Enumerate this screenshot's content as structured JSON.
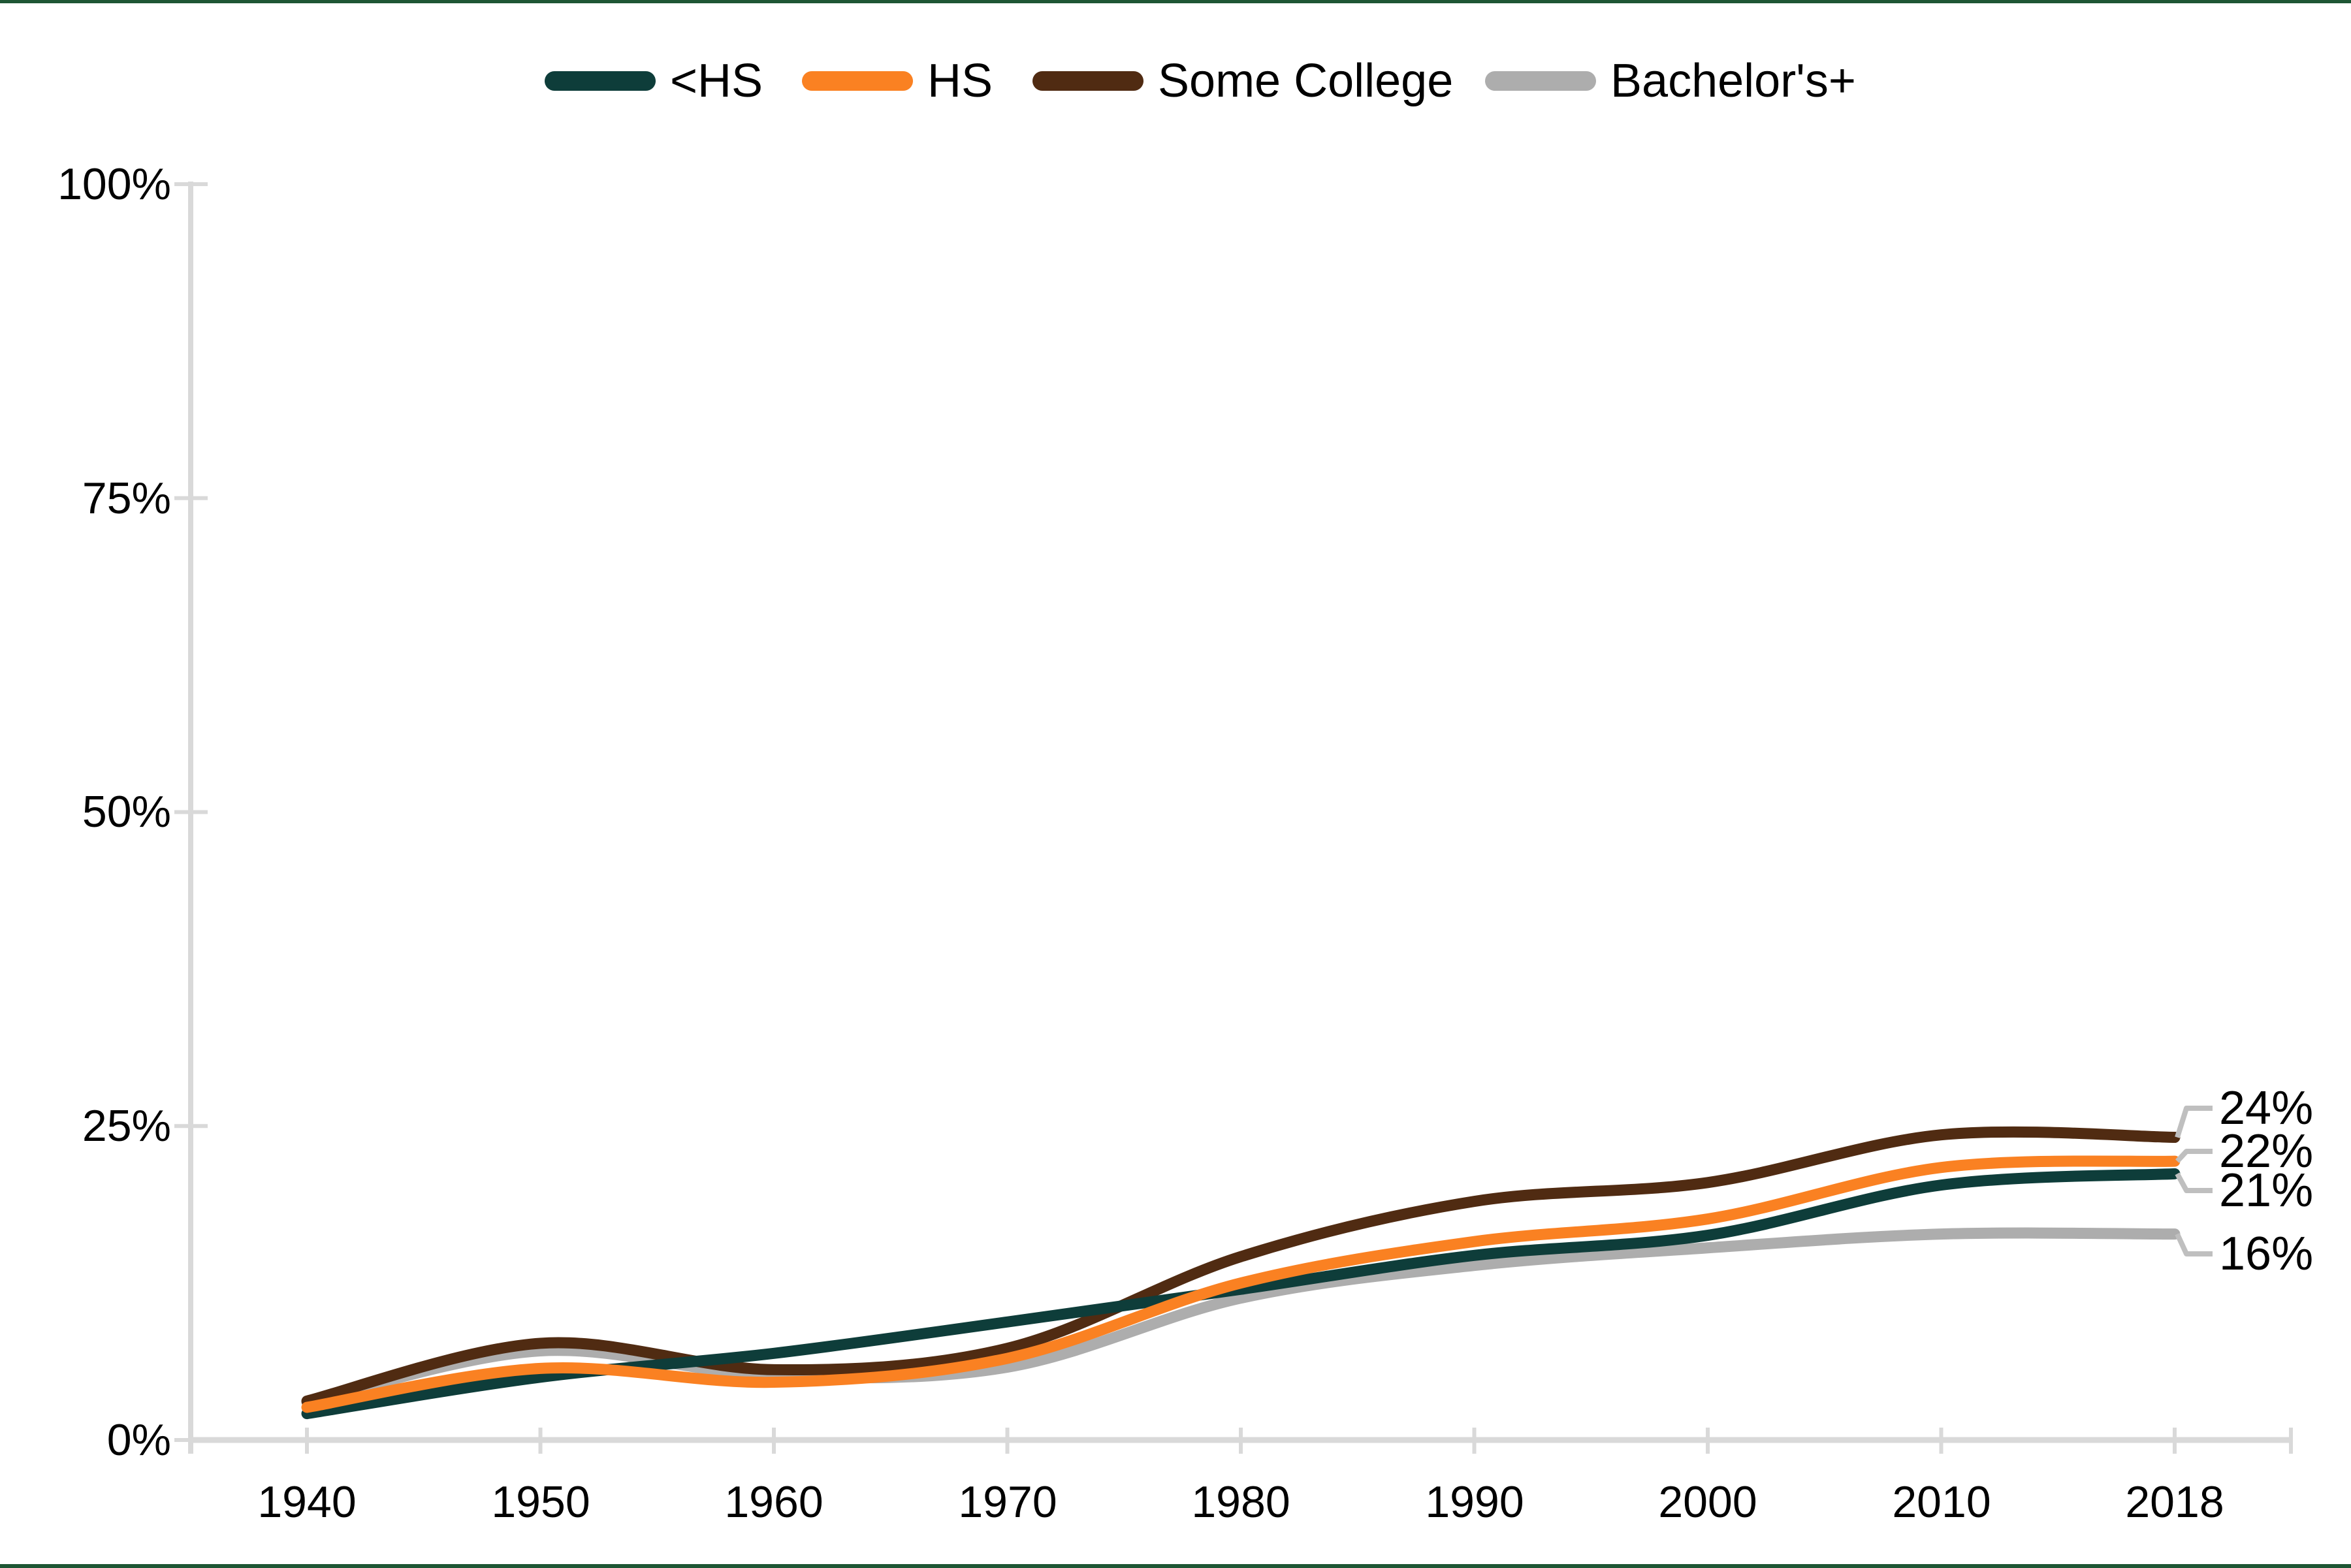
{
  "page": {
    "background": "#FFFFFF",
    "top_bottom_border_color": "#1E5634"
  },
  "chart_data": {
    "type": "line",
    "title": "",
    "xlabel": "",
    "ylabel": "",
    "x_categories": [
      "1940",
      "1950",
      "1960",
      "1970",
      "1980",
      "1990",
      "2000",
      "2010",
      "2018"
    ],
    "y_tick_labels": [
      "100%",
      "75%",
      "50%",
      "25%",
      "0%"
    ],
    "y_tick_values": [
      100,
      75,
      50,
      25,
      0
    ],
    "ylim": [
      0,
      100
    ],
    "grid": false,
    "smoothed_lines": true,
    "legend_position": "top",
    "axis_color": "#D9D9D9",
    "leader_line_color": "#BFBFBF",
    "series": [
      {
        "name": "<HS",
        "color": "#0E3D3A",
        "values": [
          2.1,
          5.0,
          6.9,
          9.4,
          12.0,
          14.7,
          16.3,
          20.3,
          21.2
        ],
        "end_label": "21%"
      },
      {
        "name": "HS",
        "color": "#FA8122",
        "values": [
          2.6,
          5.7,
          4.6,
          6.5,
          12.5,
          15.8,
          17.6,
          21.7,
          22.2
        ],
        "end_label": "22%"
      },
      {
        "name": "Some College",
        "color": "#502B12",
        "values": [
          3.1,
          7.7,
          5.6,
          7.3,
          14.6,
          19.0,
          20.5,
          24.3,
          24.1
        ],
        "end_label": "24%"
      },
      {
        "name": "Bachelor's+",
        "color": "#ADADAD",
        "values": [
          3.0,
          7.1,
          5.1,
          5.8,
          11.3,
          13.9,
          15.3,
          16.4,
          16.4
        ],
        "end_label": "16%"
      }
    ]
  }
}
